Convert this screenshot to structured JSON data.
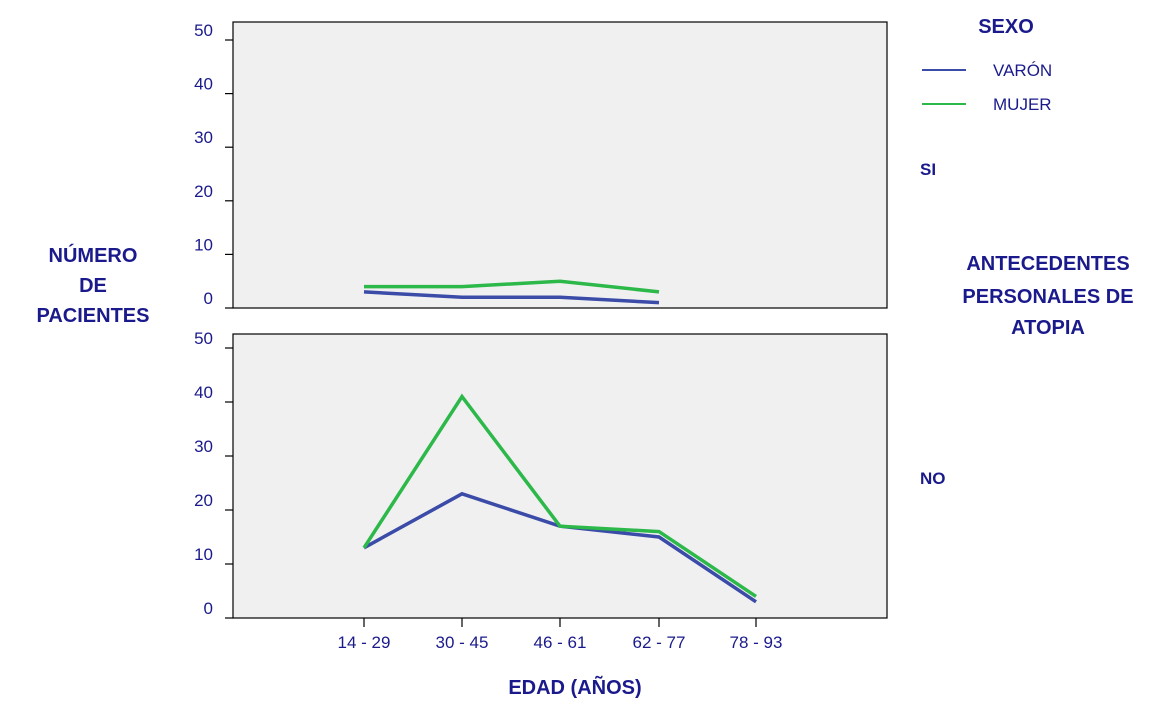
{
  "chart_data": {
    "type": "line",
    "xlabel": "EDAD (AÑOS)",
    "ylabel_lines": [
      "NÚMERO",
      "DE",
      "PACIENTES"
    ],
    "categories": [
      "14 - 29",
      "30 - 45",
      "46 - 61",
      "62 - 77",
      "78 - 93"
    ],
    "ylim": [
      0,
      50
    ],
    "yticks": [
      0,
      10,
      20,
      30,
      40,
      50
    ],
    "legend": {
      "title": "SEXO",
      "entries": [
        {
          "name": "VARÓN",
          "color": "#3b4ba8"
        },
        {
          "name": "MUJER",
          "color": "#2db84a"
        }
      ]
    },
    "facet_title_lines": [
      "ANTECEDENTES",
      "PERSONALES DE",
      "ATOPIA"
    ],
    "panels": [
      {
        "label": "SI",
        "series": [
          {
            "name": "VARÓN",
            "values": [
              3,
              2,
              2,
              1,
              null
            ]
          },
          {
            "name": "MUJER",
            "values": [
              4,
              4,
              5,
              3,
              null
            ]
          }
        ]
      },
      {
        "label": "NO",
        "series": [
          {
            "name": "VARÓN",
            "values": [
              13,
              23,
              17,
              15,
              3
            ]
          },
          {
            "name": "MUJER",
            "values": [
              13,
              41,
              17,
              16,
              4
            ]
          }
        ]
      }
    ],
    "grid": false,
    "legend_position": "top-right"
  }
}
